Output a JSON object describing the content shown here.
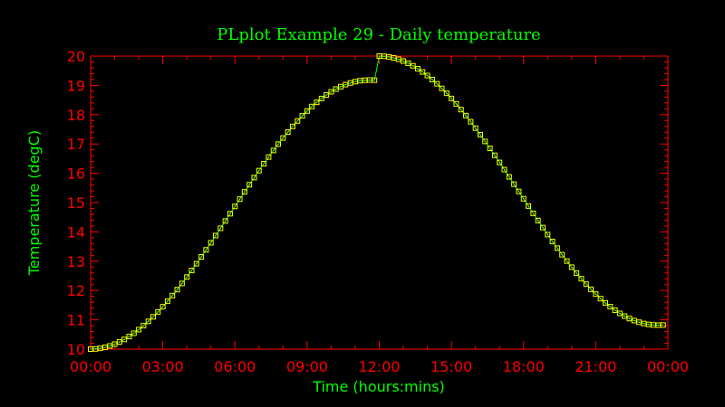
{
  "chart_data": {
    "type": "line",
    "title": "PLplot Example 29 - Daily temperature",
    "xlabel": "Time (hours:mins)",
    "ylabel": "Temperature (degC)",
    "xlim": [
      0,
      24
    ],
    "ylim": [
      10,
      20
    ],
    "x_ticks": [
      "00:00",
      "03:00",
      "06:00",
      "09:00",
      "12:00",
      "15:00",
      "18:00",
      "21:00",
      "00:00"
    ],
    "y_ticks": [
      "10",
      "11",
      "12",
      "13",
      "14",
      "15",
      "16",
      "17",
      "18",
      "19",
      "20"
    ],
    "grid": false,
    "marker": "square",
    "x": [
      0,
      0.2,
      0.4,
      0.6,
      0.8,
      1,
      1.2,
      1.4,
      1.6,
      1.8,
      2,
      2.2,
      2.4,
      2.6,
      2.8,
      3,
      3.2,
      3.4,
      3.6,
      3.8,
      4,
      4.2,
      4.4,
      4.6,
      4.8,
      5,
      5.2,
      5.4,
      5.6,
      5.8,
      6,
      6.2,
      6.4,
      6.6,
      6.8,
      7,
      7.2,
      7.4,
      7.6,
      7.8,
      8,
      8.2,
      8.4,
      8.6,
      8.8,
      9,
      9.2,
      9.4,
      9.6,
      9.8,
      10,
      10.2,
      10.4,
      10.6,
      10.8,
      11,
      11.2,
      11.4,
      11.6,
      11.8,
      12,
      12.2,
      12.4,
      12.6,
      12.8,
      13,
      13.2,
      13.4,
      13.6,
      13.8,
      14,
      14.2,
      14.4,
      14.6,
      14.8,
      15,
      15.2,
      15.4,
      15.6,
      15.8,
      16,
      16.2,
      16.4,
      16.6,
      16.8,
      17,
      17.2,
      17.4,
      17.6,
      17.8,
      18,
      18.2,
      18.4,
      18.6,
      18.8,
      19,
      19.2,
      19.4,
      19.6,
      19.8,
      20,
      20.2,
      20.4,
      20.6,
      20.8,
      21,
      21.2,
      21.4,
      21.6,
      21.8,
      22,
      22.2,
      22.4,
      22.6,
      22.8,
      23,
      23.2,
      23.4,
      23.6,
      23.8
    ],
    "values": [
      10.0,
      10.007,
      10.027,
      10.062,
      10.109,
      10.17,
      10.244,
      10.331,
      10.43,
      10.541,
      10.665,
      10.8,
      10.946,
      11.103,
      11.27,
      11.446,
      11.632,
      11.827,
      12.031,
      12.241,
      12.459,
      12.683,
      12.913,
      13.148,
      13.387,
      13.629,
      13.875,
      14.122,
      14.371,
      14.62,
      14.869,
      15.118,
      15.366,
      15.611,
      15.853,
      16.091,
      16.326,
      16.555,
      16.778,
      16.995,
      17.204,
      17.406,
      17.599,
      17.784,
      17.959,
      18.124,
      18.278,
      18.421,
      18.552,
      18.672,
      18.78,
      18.875,
      18.957,
      19.027,
      19.083,
      19.127,
      19.158,
      19.176,
      19.182,
      19.177,
      20.0,
      19.993,
      19.973,
      19.938,
      19.891,
      19.83,
      19.756,
      19.669,
      19.57,
      19.459,
      19.335,
      19.2,
      19.054,
      18.897,
      18.73,
      18.554,
      18.368,
      18.173,
      17.969,
      17.759,
      17.541,
      17.317,
      17.087,
      16.852,
      16.613,
      16.371,
      16.125,
      15.878,
      15.629,
      15.38,
      15.131,
      14.882,
      14.634,
      14.389,
      14.147,
      13.909,
      13.674,
      13.445,
      13.222,
      13.005,
      12.796,
      12.594,
      12.401,
      12.216,
      12.041,
      11.876,
      11.722,
      11.579,
      11.448,
      11.328,
      11.22,
      11.125,
      11.043,
      10.973,
      10.917,
      10.873,
      10.842,
      10.824,
      10.818,
      10.823
    ],
    "colors": {
      "frame": "#ff0000",
      "tick_labels": "#ff0000",
      "text": "#00ff00",
      "line": "#00ff00",
      "marker": "#ffff00"
    }
  }
}
